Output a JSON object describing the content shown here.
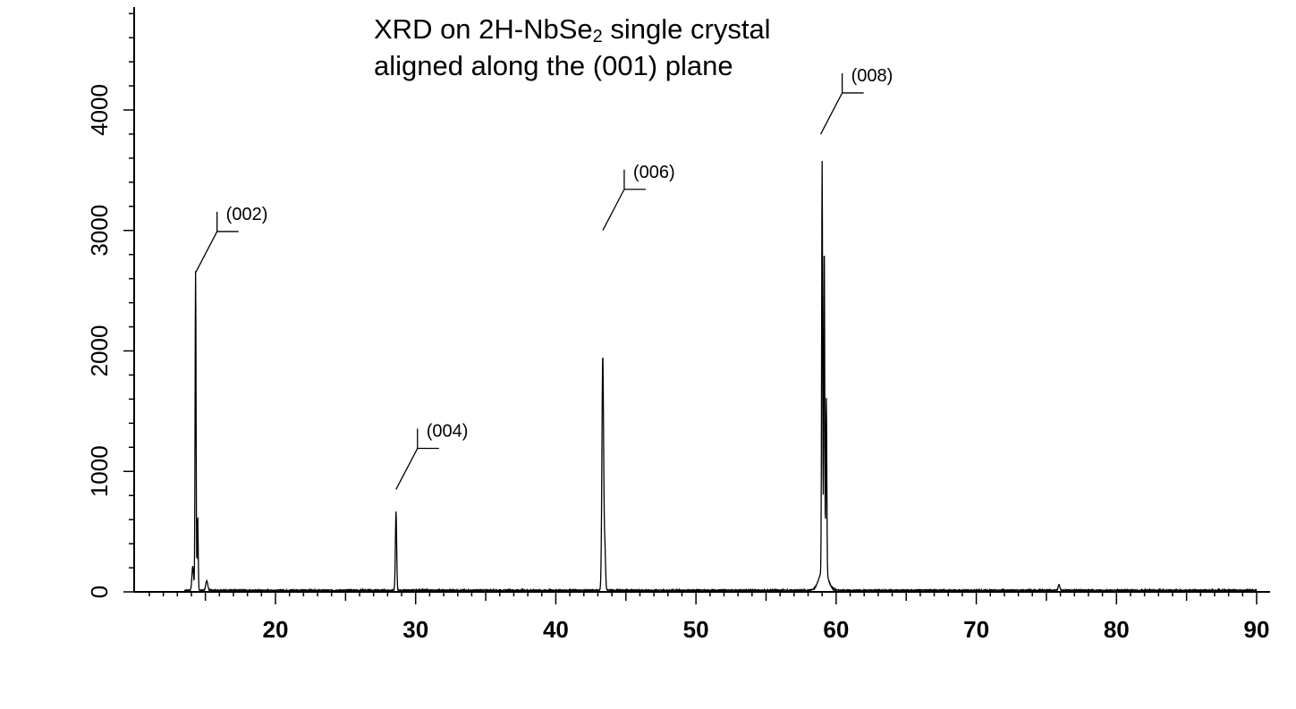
{
  "chart_data": {
    "type": "line",
    "title_line1_pre": "XRD on 2H-NbSe",
    "title_line1_sub": "2",
    "title_line1_post": " single crystal",
    "title_line2": "aligned along the (001) plane",
    "xlabel": "",
    "ylabel": "",
    "xlim": [
      10,
      91
    ],
    "ylim": [
      0,
      4800
    ],
    "x_ticks": [
      20,
      30,
      40,
      50,
      60,
      70,
      80,
      90
    ],
    "x_tick_labels": [
      "20",
      "30",
      "40",
      "50",
      "60",
      "70",
      "80",
      "90"
    ],
    "y_ticks": [
      0,
      1000,
      2000,
      3000,
      4000
    ],
    "y_tick_labels": [
      "0",
      "1000",
      "2000",
      "3000",
      "4000"
    ],
    "grid": false,
    "series": [
      {
        "peaks": [
          {
            "x": 14.1,
            "y": 200,
            "w": 0.06
          },
          {
            "x": 14.3,
            "y": 2650,
            "w": 0.035
          },
          {
            "x": 14.45,
            "y": 620,
            "w": 0.035
          },
          {
            "x": 15.1,
            "y": 80,
            "w": 0.07
          },
          {
            "x": 28.6,
            "y": 650,
            "w": 0.045
          },
          {
            "x": 43.35,
            "y": 1950,
            "w": 0.06
          },
          {
            "x": 43.5,
            "y": 330,
            "w": 0.05
          },
          {
            "x": 59.0,
            "y": 3390,
            "w": 0.035
          },
          {
            "x": 59.15,
            "y": 2700,
            "w": 0.035
          },
          {
            "x": 59.3,
            "y": 1450,
            "w": 0.035
          },
          {
            "x": 59.1,
            "y": 180,
            "w": 0.3
          },
          {
            "x": 75.9,
            "y": 45,
            "w": 0.06
          }
        ]
      }
    ],
    "annotations": [
      {
        "text": "(002)",
        "x": 14.3,
        "y": 2650
      },
      {
        "text": "(004)",
        "x": 28.6,
        "y": 850
      },
      {
        "text": "(006)",
        "x": 43.35,
        "y": 3000
      },
      {
        "text": "(008)",
        "x": 58.9,
        "y": 3800
      }
    ]
  }
}
